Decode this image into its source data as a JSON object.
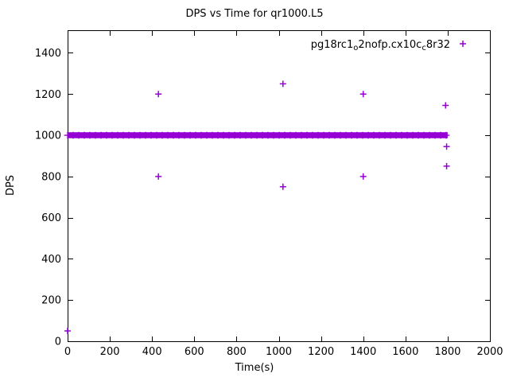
{
  "chart_data": {
    "type": "scatter",
    "title": "DPS vs Time for qr1000.L5",
    "xlabel": "Time(s)",
    "ylabel": "DPS",
    "xlim": [
      0,
      2000
    ],
    "ylim": [
      0,
      1510
    ],
    "xticks": [
      0,
      200,
      400,
      600,
      800,
      1000,
      1200,
      1400,
      1600,
      1800,
      2000
    ],
    "yticks": [
      0,
      200,
      400,
      600,
      800,
      1000,
      1200,
      1400
    ],
    "grid": false,
    "marker": "plus",
    "color": "#9400d3",
    "legend_position": "top-right-inside",
    "legend_label": "pg18rc1_o2nofp.cx10c_c8r32",
    "legend_segments": [
      {
        "t": "pg18rc1"
      },
      {
        "t": "o",
        "sub": true
      },
      {
        "t": "2nofp.cx10c"
      },
      {
        "t": "c",
        "sub": true
      },
      {
        "t": "8r32"
      }
    ],
    "series": [
      {
        "name": "pg18rc1_o2nofp.cx10c_c8r32",
        "band": {
          "y": 1000,
          "x_start": 0,
          "x_end": 1800
        },
        "outliers": [
          [
            0,
            50
          ],
          [
            430,
            1200
          ],
          [
            430,
            800
          ],
          [
            1020,
            1250
          ],
          [
            1020,
            750
          ],
          [
            1400,
            1200
          ],
          [
            1400,
            800
          ],
          [
            1790,
            1145
          ],
          [
            1795,
            945
          ],
          [
            1795,
            850
          ]
        ]
      }
    ]
  }
}
